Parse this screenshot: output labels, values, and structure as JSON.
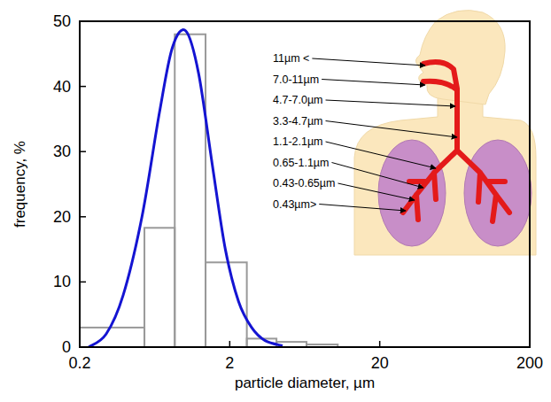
{
  "chart_data": {
    "type": "histogram",
    "x_label": "particle diameter, µm",
    "y_label": "frequency, %",
    "bins": [
      0.2,
      0.54,
      0.86,
      1.38,
      2.6,
      4.1,
      6.5,
      10.5
    ],
    "values": [
      3,
      18.3,
      48,
      13,
      1.3,
      0.8,
      0.4
    ],
    "color": "#999999",
    "curve": {
      "type": "line",
      "color": "#1414d2",
      "x": [
        0.23,
        0.3,
        0.39,
        0.52,
        0.68,
        0.83,
        1.02,
        1.24,
        1.53,
        1.87,
        2.29,
        2.8,
        3.44,
        4.5
      ],
      "values": [
        0,
        2,
        8,
        20,
        36,
        46,
        48.5,
        42,
        28,
        15,
        7,
        3,
        1,
        0.2
      ]
    },
    "xlim": [
      0.2,
      200
    ],
    "ylim": [
      0,
      50
    ],
    "xticks": [
      0.2,
      2,
      20,
      200
    ],
    "yticks": [
      0,
      10,
      20,
      30,
      40,
      50
    ],
    "log": "x",
    "annotations": [
      "11µm <",
      "7.0-11µm",
      "4.7-7.0µm",
      "3.3-4.7µm",
      "1.1-2.1µm",
      "0.65-1.1µm",
      "0.43-0.65µm",
      "0.43µm>"
    ]
  }
}
